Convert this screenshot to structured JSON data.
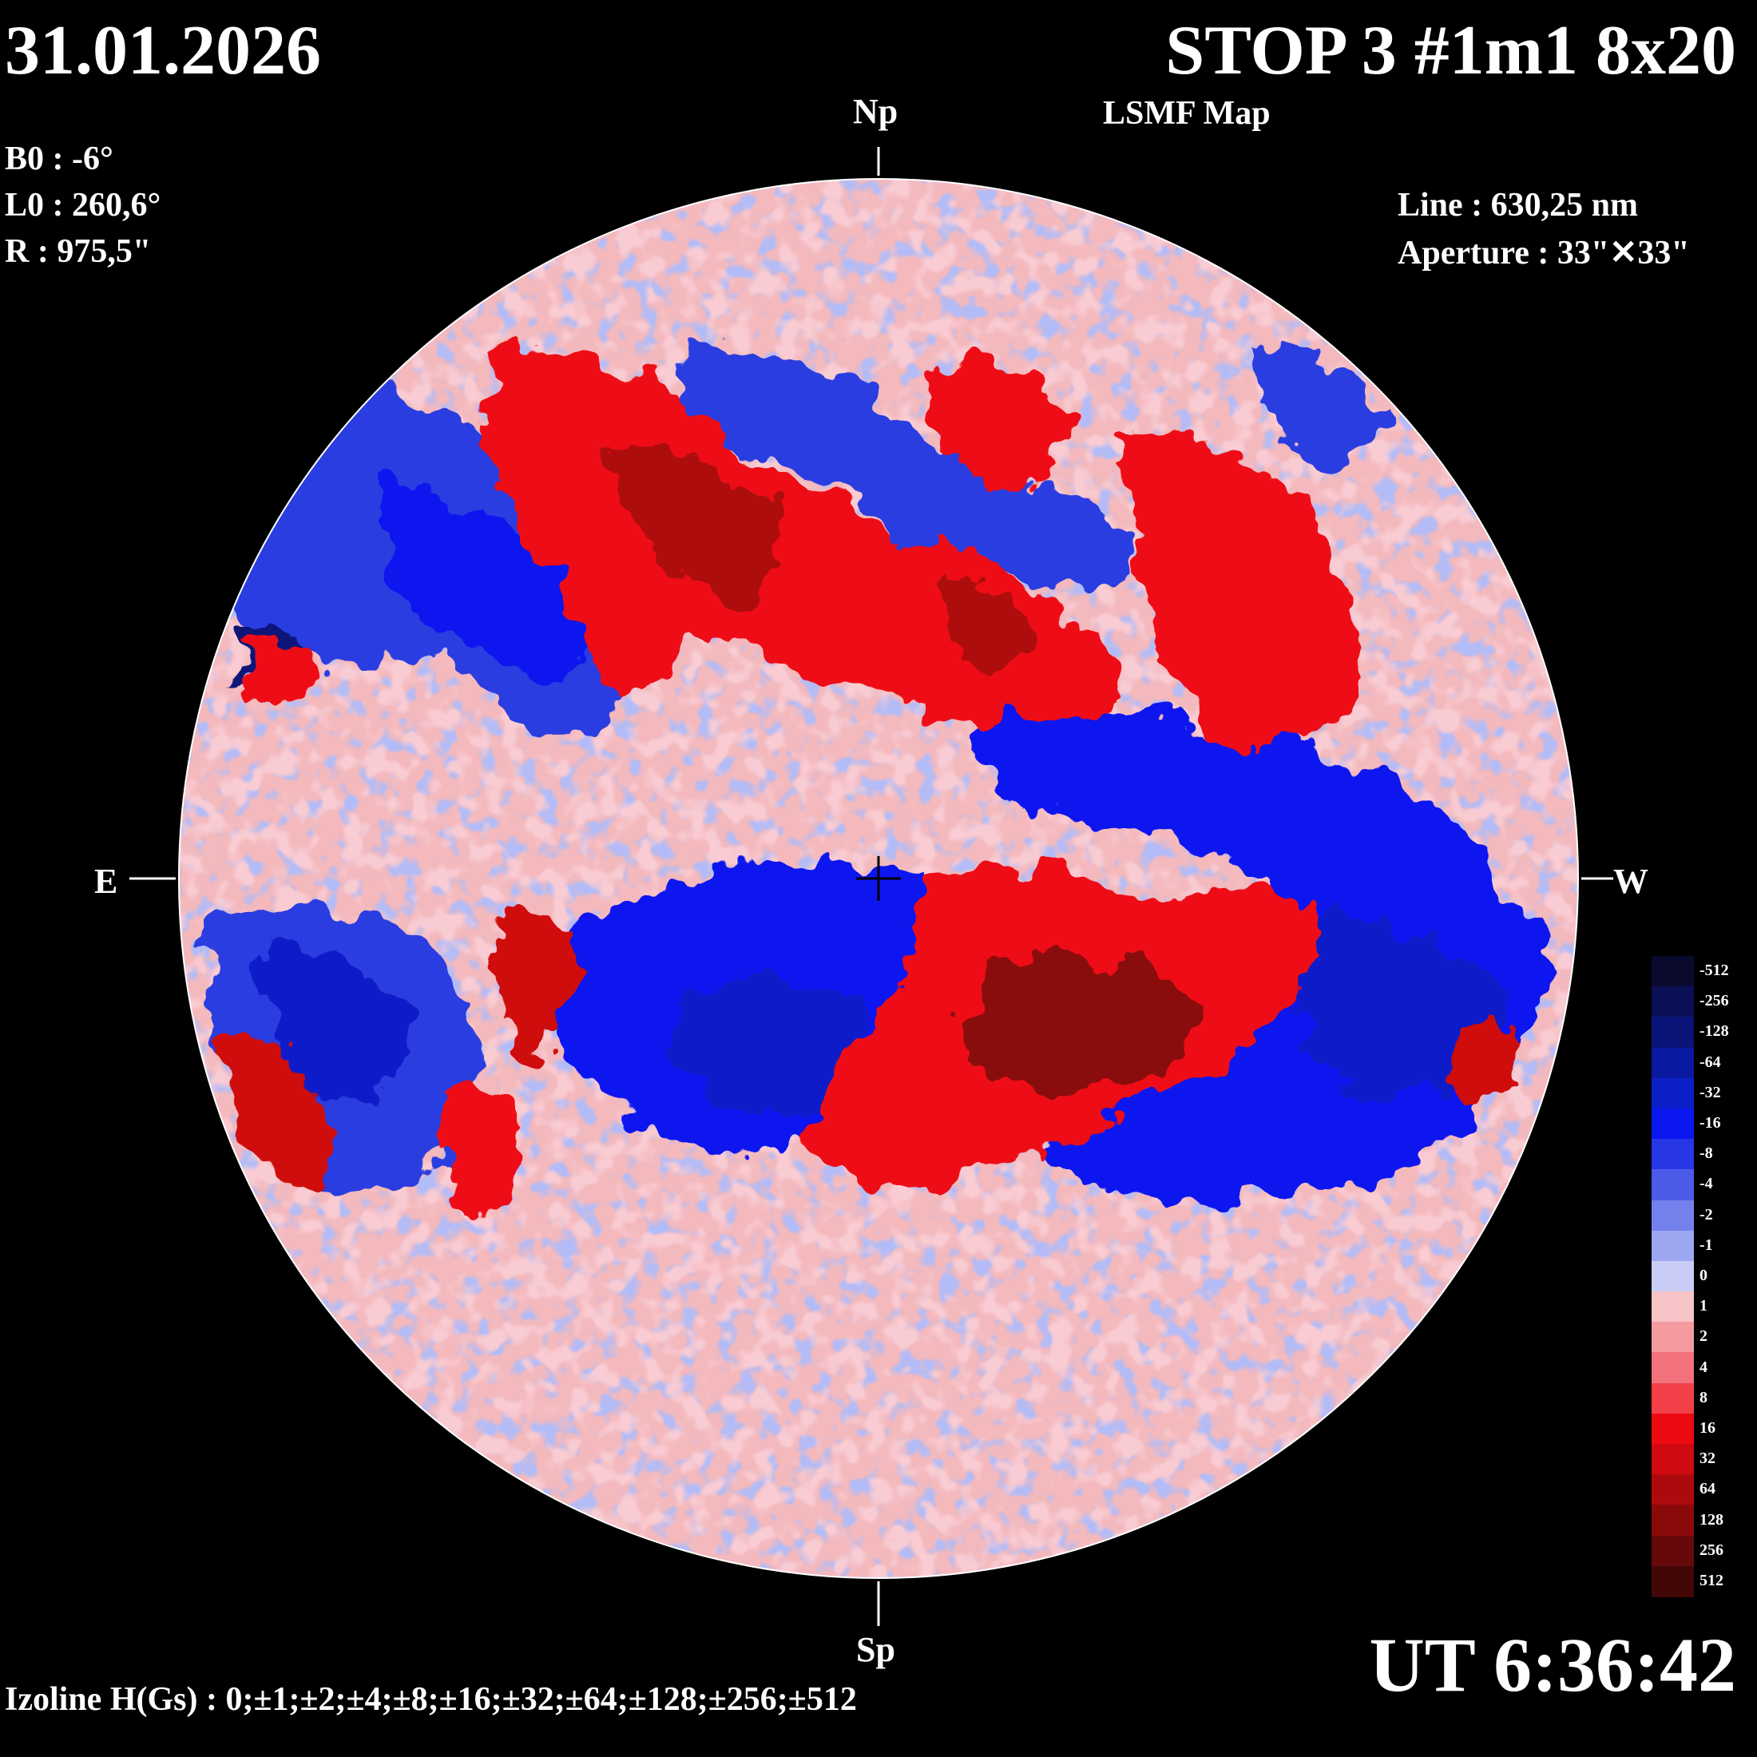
{
  "header": {
    "date": "31.01.2026",
    "title": "STOP 3 #1m1 8x20",
    "subtitle": "LSMF  Map"
  },
  "params": {
    "b0": "B0 : -6°",
    "l0": "L0 : 260,6°",
    "r": "R  : 975,5\""
  },
  "instrument": {
    "line": "Line :  630,25 nm",
    "aperture": "Aperture : 33\"✕33\""
  },
  "cardinals": {
    "north": "Np",
    "south": "Sp",
    "east": "E",
    "west": "W"
  },
  "time": "UT 6:36:42",
  "izoline": "Izoline H(Gs) : 0;±1;±2;±4;±8;±16;±32;±64;±128;±256;±512",
  "colorbar": {
    "levels": [
      {
        "label": "-512",
        "color": "#0a0a2e"
      },
      {
        "label": "-256",
        "color": "#0b0f55"
      },
      {
        "label": "-128",
        "color": "#0a1478"
      },
      {
        "label": "-64",
        "color": "#0a1aa0"
      },
      {
        "label": "-32",
        "color": "#0b1fc8"
      },
      {
        "label": "-16",
        "color": "#0a17ef"
      },
      {
        "label": "-8",
        "color": "#2737e6"
      },
      {
        "label": "-4",
        "color": "#4c5ce8"
      },
      {
        "label": "-2",
        "color": "#7480ec"
      },
      {
        "label": "-1",
        "color": "#9da6f1"
      },
      {
        "label": "0",
        "color": "#c9cdf6"
      },
      {
        "label": "1",
        "color": "#f6c3c6"
      },
      {
        "label": "2",
        "color": "#f59ba0"
      },
      {
        "label": "4",
        "color": "#f3717a"
      },
      {
        "label": "8",
        "color": "#f23f48"
      },
      {
        "label": "16",
        "color": "#ee0a12"
      },
      {
        "label": "32",
        "color": "#cf0a10"
      },
      {
        "label": "64",
        "color": "#ad0a0e"
      },
      {
        "label": "128",
        "color": "#8a0a0c"
      },
      {
        "label": "256",
        "color": "#66090a"
      },
      {
        "label": "512",
        "color": "#440708"
      }
    ]
  }
}
